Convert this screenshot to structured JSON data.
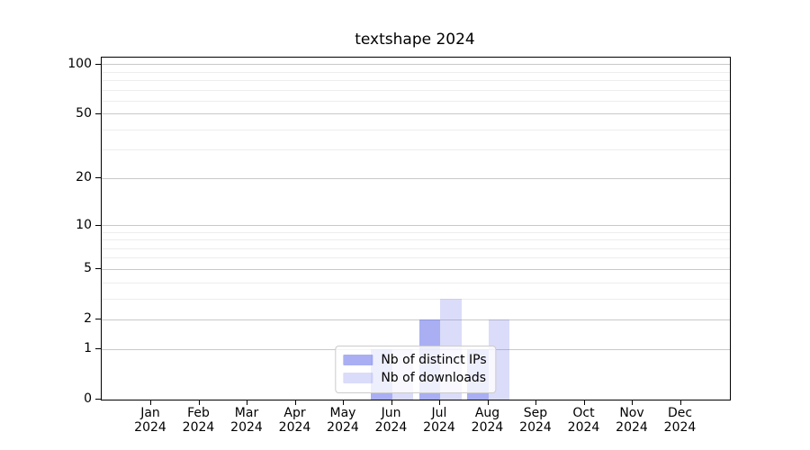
{
  "window": {
    "background_color": "#ffffff",
    "text_color": "#000000"
  },
  "chart_data": {
    "type": "bar",
    "title": "textshape 2024",
    "xlabel": "",
    "ylabel": "",
    "y_scale": "log1p",
    "ylim": [
      0,
      110
    ],
    "y_major_ticks": [
      0,
      1,
      2,
      5,
      10,
      20,
      50,
      100
    ],
    "y_minor_gridlines": [
      3,
      4,
      6,
      7,
      8,
      9,
      30,
      40,
      60,
      70,
      80,
      90
    ],
    "grid": "horizontal-only",
    "categories": [
      "Jan",
      "Feb",
      "Mar",
      "Apr",
      "May",
      "Jun",
      "Jul",
      "Aug",
      "Sep",
      "Oct",
      "Nov",
      "Dec"
    ],
    "tick_year": "2024",
    "series": [
      {
        "name": "Nb of distinct IPs",
        "color": "rgba(99,110,231,0.55)",
        "color_hex_on_white": "#a9aef3",
        "values": [
          0,
          0,
          0,
          0,
          0,
          1,
          2,
          1,
          0,
          0,
          0,
          0
        ]
      },
      {
        "name": "Nb of downloads",
        "color": "rgba(99,110,231,0.24)",
        "color_hex_on_white": "#dcdef9",
        "values": [
          0,
          0,
          0,
          0,
          0,
          1,
          3,
          2,
          0,
          0,
          0,
          0
        ]
      }
    ],
    "legend": {
      "position": "lower center",
      "entries": [
        "Nb of distinct IPs",
        "Nb of downloads"
      ]
    },
    "colors": {
      "grid_major": "#c9c9c9",
      "grid_minor": "#ededed",
      "axis": "#000000",
      "background": "#ffffff"
    }
  }
}
